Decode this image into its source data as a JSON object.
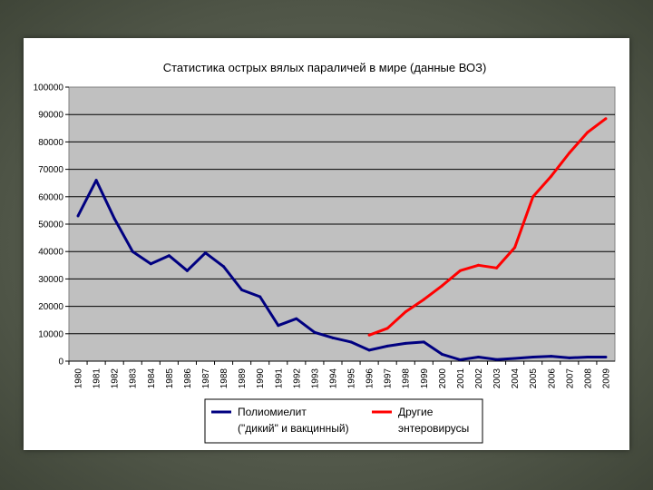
{
  "chart_data": {
    "type": "line",
    "title": "Статистика острых вялых параличей в мире (данные ВОЗ)",
    "xlabel": "",
    "ylabel": "",
    "ylim": [
      0,
      100000
    ],
    "y_ticks": [
      "0",
      "10000",
      "20000",
      "30000",
      "40000",
      "50000",
      "60000",
      "70000",
      "80000",
      "90000",
      "100000"
    ],
    "categories": [
      "1980",
      "1981",
      "1982",
      "1983",
      "1984",
      "1985",
      "1986",
      "1987",
      "1988",
      "1989",
      "1990",
      "1991",
      "1992",
      "1993",
      "1994",
      "1995",
      "1996",
      "1997",
      "1998",
      "1999",
      "2000",
      "2001",
      "2002",
      "2003",
      "2004",
      "2005",
      "2006",
      "2007",
      "2008",
      "2009"
    ],
    "grid": true,
    "plot_background": "#c0c0c0",
    "legend_position": "bottom",
    "series": [
      {
        "name": "Полиомиелит (\"дикий\" и вакцинный)",
        "legend_lines": [
          "Полиомиелит",
          "(\"дикий\" и вакцинный)"
        ],
        "color": "#000080",
        "values": [
          53000,
          66000,
          52000,
          40000,
          35500,
          38500,
          33000,
          39500,
          34500,
          26000,
          23500,
          13000,
          15500,
          10500,
          8500,
          7000,
          4000,
          5500,
          6500,
          7000,
          2500,
          500,
          1500,
          600,
          1000,
          1500,
          1800,
          1200,
          1500,
          1500
        ]
      },
      {
        "name": "Другие энтеровирусы",
        "legend_lines": [
          "Другие",
          "энтеровирусы"
        ],
        "color": "#ff0000",
        "values": [
          null,
          null,
          null,
          null,
          null,
          null,
          null,
          null,
          null,
          null,
          null,
          null,
          null,
          null,
          null,
          null,
          9500,
          12000,
          18000,
          22500,
          27500,
          33000,
          35000,
          34000,
          41500,
          60000,
          67500,
          76000,
          83500,
          88500
        ]
      }
    ]
  }
}
